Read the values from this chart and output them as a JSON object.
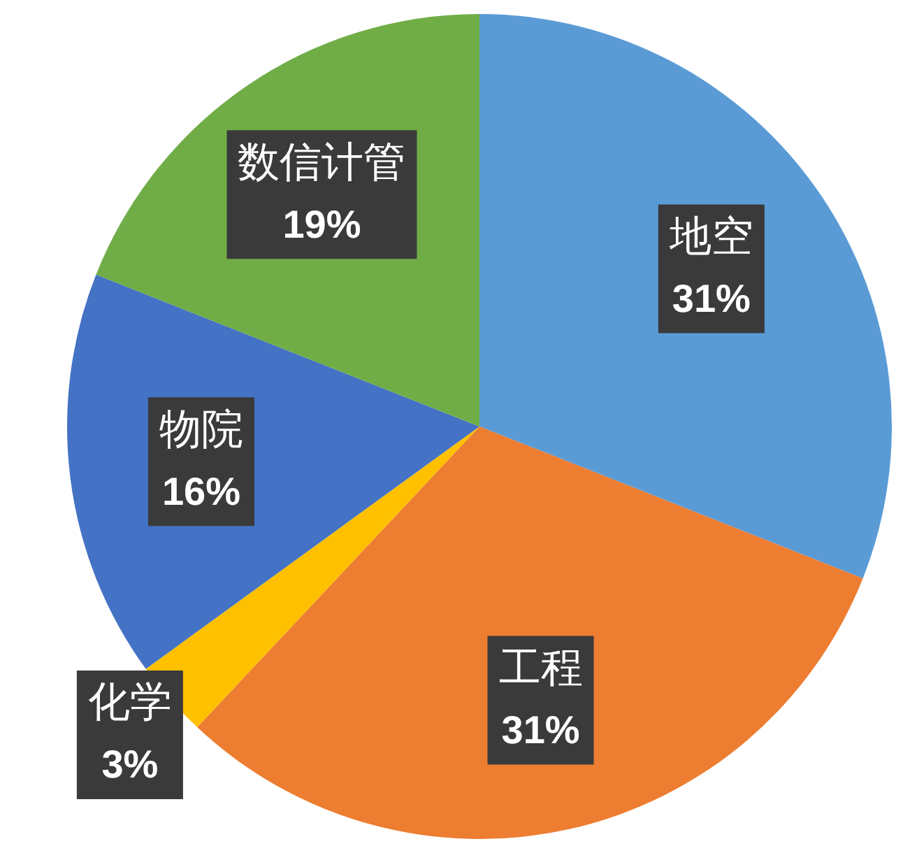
{
  "chart_data": {
    "type": "pie",
    "categories": [
      "地空",
      "工程",
      "化学",
      "物院",
      "数信计管"
    ],
    "values": [
      31,
      31,
      3,
      16,
      19
    ],
    "colors": [
      "#5b9bd5",
      "#ed7d31",
      "#ffc000",
      "#4472c4",
      "#70ad47"
    ],
    "value_labels": [
      "31%",
      "31%",
      "3%",
      "16%",
      "19%"
    ],
    "legend": false
  }
}
